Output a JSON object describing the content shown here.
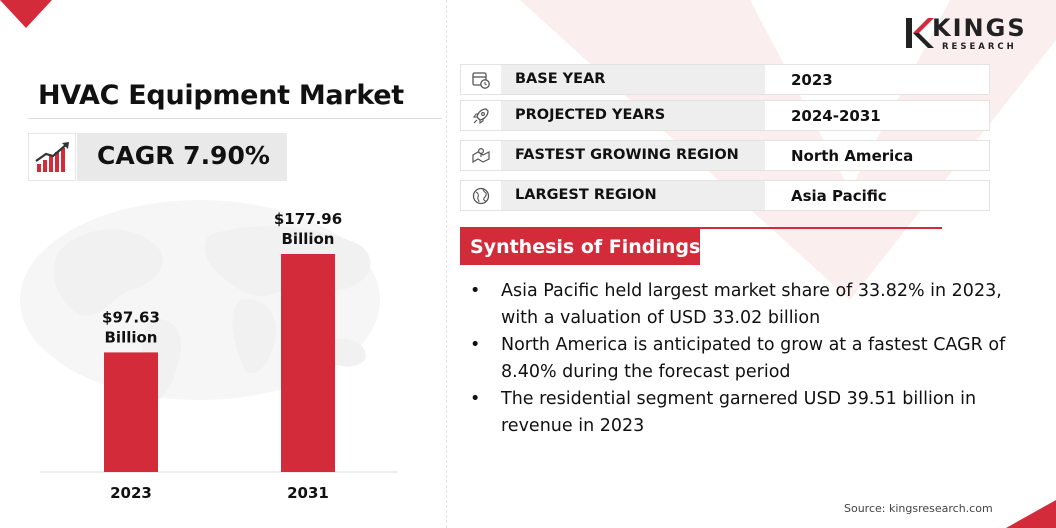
{
  "title": "HVAC Equipment Market",
  "cagr": "CAGR 7.90%",
  "colors": {
    "accent": "#d42b3b",
    "label_bg": "#eeeeee",
    "cagr_bg": "#e9e9e9",
    "text": "#111111"
  },
  "icons": [
    "chart-growth-icon",
    "calendar-clock-icon",
    "rocket-icon",
    "region-map-icon",
    "globe-icon"
  ],
  "chart_data": {
    "type": "bar",
    "categories": [
      "2023",
      "2031"
    ],
    "values": [
      97.63,
      177.96
    ],
    "data_labels": [
      [
        "$97.63",
        "Billion"
      ],
      [
        "$177.96",
        "Billion"
      ]
    ],
    "xlabel": "",
    "ylabel": "",
    "title": "",
    "grid": false,
    "color": "#d42b3b"
  },
  "info_rows": [
    {
      "label": "BASE YEAR",
      "value": "2023"
    },
    {
      "label": "PROJECTED YEARS",
      "value": "2024-2031"
    },
    {
      "label": "FASTEST GROWING REGION",
      "value": "North America"
    },
    {
      "label": "LARGEST REGION",
      "value": "Asia Pacific"
    }
  ],
  "synthesis": {
    "heading": "Synthesis of Findings",
    "bullets": [
      "Asia Pacific held largest market share of 33.82% in 2023, with a valuation of USD 33.02 billion",
      "North America is anticipated to grow at a fastest CAGR of 8.40% during the forecast period",
      "The residential segment garnered USD 39.51 billion in revenue in 2023"
    ]
  },
  "logo": {
    "name": "KINGS",
    "sub": "RESEARCH"
  },
  "source": "Source: kingsresearch.com"
}
